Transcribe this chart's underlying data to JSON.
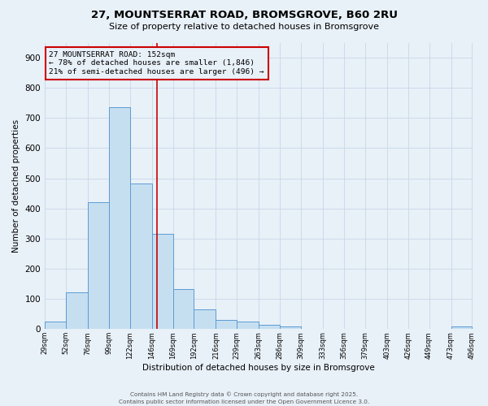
{
  "title1": "27, MOUNTSERRAT ROAD, BROMSGROVE, B60 2RU",
  "title2": "Size of property relative to detached houses in Bromsgrove",
  "xlabel": "Distribution of detached houses by size in Bromsgrove",
  "ylabel": "Number of detached properties",
  "bin_labels": [
    "29sqm",
    "52sqm",
    "76sqm",
    "99sqm",
    "122sqm",
    "146sqm",
    "169sqm",
    "192sqm",
    "216sqm",
    "239sqm",
    "263sqm",
    "286sqm",
    "309sqm",
    "333sqm",
    "356sqm",
    "379sqm",
    "403sqm",
    "426sqm",
    "449sqm",
    "473sqm",
    "496sqm"
  ],
  "bin_edges": [
    29,
    52,
    76,
    99,
    122,
    146,
    169,
    192,
    216,
    239,
    263,
    286,
    309,
    333,
    356,
    379,
    403,
    426,
    449,
    473,
    496
  ],
  "counts": [
    25,
    122,
    422,
    737,
    483,
    315,
    133,
    65,
    30,
    25,
    13,
    8,
    0,
    0,
    0,
    0,
    0,
    0,
    0,
    8,
    0
  ],
  "bar_color": "#c6dff0",
  "bar_edge_color": "#5b9bd5",
  "property_size": 152,
  "vline_color": "#cc0000",
  "annotation_line1": "27 MOUNTSERRAT ROAD: 152sqm",
  "annotation_line2": "← 78% of detached houses are smaller (1,846)",
  "annotation_line3": "21% of semi-detached houses are larger (496) →",
  "ylim": [
    0,
    950
  ],
  "yticks": [
    0,
    100,
    200,
    300,
    400,
    500,
    600,
    700,
    800,
    900
  ],
  "grid_color": "#c8d8e8",
  "background_color": "#e8f0f8",
  "footer1": "Contains HM Land Registry data © Crown copyright and database right 2025.",
  "footer2": "Contains public sector information licensed under the Open Government Licence 3.0."
}
